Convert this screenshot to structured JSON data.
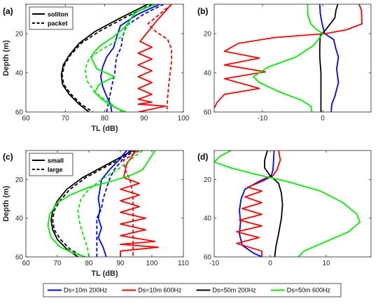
{
  "chart_data": [
    {
      "type": "line",
      "panel_label": "(a)",
      "xlabel": "TL (dB)",
      "ylabel": "Depth (m)",
      "xlim": [
        60,
        100
      ],
      "ylim": [
        60,
        5
      ],
      "xticks": [
        60,
        70,
        80,
        90,
        100
      ],
      "yticks": [
        20,
        40,
        60
      ],
      "legend": {
        "position": "top-left",
        "entries": [
          {
            "label": "soliton",
            "style": "solid"
          },
          {
            "label": "packet",
            "style": "dashed"
          }
        ]
      },
      "series": [
        {
          "color": "#000000",
          "style": "solid",
          "x": [
            91,
            84,
            77.5,
            73.5,
            71,
            69.5,
            69,
            69.3,
            71,
            73.5,
            76
          ],
          "y": [
            5,
            12,
            19,
            25,
            31,
            36,
            41,
            46,
            51,
            56,
            60
          ]
        },
        {
          "color": "#000000",
          "style": "dashed",
          "x": [
            92,
            85,
            78.5,
            74,
            71.3,
            69.8,
            69.2,
            69.6,
            71.5,
            74,
            77
          ],
          "y": [
            5,
            12,
            19,
            25,
            31,
            36,
            41,
            46,
            51,
            56,
            60
          ]
        },
        {
          "color": "#0000ff",
          "style": "solid",
          "x": [
            94,
            88.5,
            84,
            83,
            82.3,
            80.5,
            79.5,
            79,
            79.5,
            80.5,
            81.5,
            81.8
          ],
          "y": [
            5,
            10,
            16,
            22,
            27,
            32,
            37,
            42,
            47,
            52,
            56,
            60
          ]
        },
        {
          "color": "#0000ff",
          "style": "dashed",
          "x": [
            95,
            90,
            85.5,
            84.5,
            84.2,
            83,
            82.7,
            82.5,
            82,
            81.5,
            81,
            80.5
          ],
          "y": [
            5,
            10,
            16,
            22,
            27,
            32,
            37,
            41,
            45,
            50,
            55,
            60
          ]
        },
        {
          "color": "#ff0000",
          "style": "solid",
          "x": [
            97,
            93,
            89,
            92,
            88.5,
            92,
            88.5,
            92,
            88.5,
            92,
            88.5,
            92,
            88.5,
            92,
            88.5,
            95.5,
            88.5
          ],
          "y": [
            5,
            14,
            24,
            27,
            30,
            33,
            36,
            39,
            42,
            45,
            48,
            51,
            53.5,
            55,
            56,
            57,
            60
          ]
        },
        {
          "color": "#ff0000",
          "style": "dashed",
          "x": [
            97,
            94,
            91,
            93,
            96,
            97,
            97,
            96.5,
            96,
            95.8
          ],
          "y": [
            5,
            10,
            15,
            19,
            23,
            28,
            34,
            42,
            52,
            60
          ]
        },
        {
          "color": "#00ee00",
          "style": "solid",
          "x": [
            93,
            87.5,
            86.5,
            85,
            82,
            79,
            77.5,
            76.5,
            78,
            82.5,
            78.5,
            77.5,
            79,
            81,
            83.5,
            85.5
          ],
          "y": [
            5,
            9,
            13,
            17,
            22,
            26,
            29,
            32,
            38,
            42,
            46,
            50,
            53,
            56,
            58.5,
            60
          ]
        },
        {
          "color": "#00ee00",
          "style": "dashed",
          "x": [
            93,
            88,
            86.5,
            85.5,
            84.5,
            82,
            78.5,
            76,
            75,
            75.5,
            77.5,
            81,
            84.5
          ],
          "y": [
            5,
            9,
            13,
            17,
            21,
            25,
            29,
            33,
            38,
            44,
            50,
            55,
            60
          ]
        }
      ]
    },
    {
      "type": "line",
      "panel_label": "(b)",
      "xlabel": "",
      "ylabel": "",
      "xlim": [
        -18,
        8
      ],
      "ylim": [
        60,
        5
      ],
      "xticks": [
        -10,
        0
      ],
      "yticks": [
        20,
        40,
        60
      ],
      "series": [
        {
          "color": "#0000ff",
          "style": "solid",
          "x": [
            -0.5,
            -0.4,
            -0.1,
            0.3,
            1.8,
            2.2,
            2.6,
            2.3,
            2.6,
            2.0,
            1.5,
            1.4
          ],
          "y": [
            5,
            10,
            15,
            20,
            23,
            28,
            32,
            38,
            45,
            52,
            56,
            60
          ]
        },
        {
          "color": "#ff0000",
          "style": "solid",
          "x": [
            6,
            6.4,
            6.5,
            4,
            0.5,
            -8,
            -14,
            -16.3,
            -10.5,
            -16.3,
            -9.5,
            -16.3,
            -10.5,
            -16.3,
            -17.5,
            -18
          ],
          "y": [
            5,
            8,
            15,
            18,
            20,
            22,
            25,
            29,
            32.5,
            36,
            39.5,
            43,
            48,
            51,
            55,
            58
          ]
        },
        {
          "color": "#000000",
          "style": "solid",
          "x": [
            2.5,
            2.2,
            2,
            0.5,
            -0.4,
            -0.5,
            -0.5,
            -0.3,
            -0.3,
            -0.3
          ],
          "y": [
            5,
            8,
            12,
            18,
            21,
            26,
            32,
            40,
            50,
            60
          ]
        },
        {
          "color": "#00ee00",
          "style": "solid",
          "x": [
            -2.5,
            -2.5,
            -2,
            -1,
            0,
            -1.5,
            -4.5,
            -9,
            -11.5,
            -10.5,
            -7,
            -3.5,
            -2,
            -1.8
          ],
          "y": [
            5,
            10,
            15,
            18,
            20,
            26,
            32,
            37,
            42,
            45,
            50,
            54,
            57,
            60
          ]
        }
      ]
    },
    {
      "type": "line",
      "panel_label": "(c)",
      "xlabel": "TL (dB)",
      "ylabel": "Depth (m)",
      "xlim": [
        60,
        110
      ],
      "ylim": [
        60,
        5
      ],
      "xticks": [
        60,
        70,
        80,
        90,
        100,
        110
      ],
      "yticks": [
        20,
        40,
        60
      ],
      "legend": {
        "position": "top-left",
        "entries": [
          {
            "label": "small",
            "style": "solid"
          },
          {
            "label": "large",
            "style": "dashed"
          }
        ]
      },
      "series": [
        {
          "color": "#000000",
          "style": "solid",
          "x": [
            94,
            86,
            78,
            73,
            70,
            68.5,
            68,
            68.5,
            70,
            73,
            76.5
          ],
          "y": [
            5,
            12,
            19,
            25,
            31,
            36,
            41,
            46,
            51,
            56,
            60
          ]
        },
        {
          "color": "#000000",
          "style": "dashed",
          "x": [
            95,
            87,
            79,
            74,
            70.8,
            69,
            68.5,
            69,
            71,
            74,
            78
          ],
          "y": [
            5,
            12,
            19,
            25,
            31,
            36,
            41,
            46,
            51,
            56,
            60
          ]
        },
        {
          "color": "#0000ff",
          "style": "solid",
          "x": [
            92,
            89.5,
            86.5,
            84,
            83.5,
            83,
            83.5,
            83,
            84,
            83,
            84.5,
            85.5
          ],
          "y": [
            5,
            10,
            15,
            20,
            25,
            30,
            35,
            40,
            45,
            50,
            55,
            60
          ]
        },
        {
          "color": "#0000ff",
          "style": "dashed",
          "x": [
            93,
            90.5,
            88,
            86.5,
            85.5,
            84.5,
            84,
            82.5,
            82.5,
            82.5,
            82.5
          ],
          "y": [
            5,
            10,
            15,
            20,
            25,
            30,
            35,
            40,
            45,
            50,
            60
          ]
        },
        {
          "color": "#ff0000",
          "style": "solid",
          "x": [
            95,
            92,
            91,
            96,
            90,
            96,
            90,
            96,
            90,
            98,
            90,
            98,
            90,
            101,
            90,
            102,
            90,
            90
          ],
          "y": [
            5,
            12,
            19,
            22,
            25,
            28,
            31,
            34,
            37,
            40,
            43,
            46,
            49,
            52,
            53.5,
            55,
            57,
            60
          ]
        },
        {
          "color": "#ff0000",
          "style": "dashed",
          "x": [
            96,
            91,
            91.5,
            93,
            94,
            94,
            94,
            94
          ],
          "y": [
            5,
            10,
            15,
            20,
            28,
            38,
            50,
            60
          ]
        },
        {
          "color": "#00ee00",
          "style": "solid",
          "x": [
            101,
            99,
            97,
            93,
            87,
            80,
            74,
            70,
            67.5,
            67,
            68,
            71,
            75,
            79
          ],
          "y": [
            5,
            10,
            15,
            18,
            21,
            24,
            28,
            32,
            38,
            44,
            50,
            55,
            58,
            60
          ]
        },
        {
          "color": "#00ee00",
          "style": "dashed",
          "x": [
            97,
            93,
            89,
            84,
            80,
            77.5,
            76.5,
            77,
            78,
            79.5,
            80
          ],
          "y": [
            5,
            10,
            15,
            20,
            25,
            30,
            36,
            42,
            48,
            55,
            60
          ]
        }
      ]
    },
    {
      "type": "line",
      "panel_label": "(d)",
      "xlabel": "",
      "ylabel": "",
      "xlim": [
        -10,
        18
      ],
      "ylim": [
        60,
        5
      ],
      "xticks": [
        -10,
        0,
        10
      ],
      "yticks": [
        20,
        40,
        60
      ],
      "series": [
        {
          "color": "#0000ff",
          "style": "solid",
          "x": [
            0.7,
            0.6,
            0.5,
            0.2,
            -2,
            -4.5,
            -5.2,
            -5.5,
            -5.3,
            -5.5,
            -5,
            -3,
            -1.5
          ],
          "y": [
            5,
            10,
            15,
            18,
            21,
            25,
            30,
            36,
            42,
            48,
            54,
            58,
            60
          ]
        },
        {
          "color": "#ff0000",
          "style": "solid",
          "x": [
            1.5,
            1.8,
            1.2,
            0.5,
            -1.5,
            -4,
            -1.5,
            -4.5,
            -1.5,
            -5,
            -1.5,
            -5.5,
            -1.5,
            -6,
            -2,
            -6,
            -1.5,
            -1.5
          ],
          "y": [
            5,
            10,
            15,
            18,
            21,
            24,
            26,
            29,
            32,
            35,
            38,
            41,
            44,
            47,
            50,
            53,
            57,
            60
          ]
        },
        {
          "color": "#000000",
          "style": "solid",
          "x": [
            -0.5,
            -1,
            -1,
            0,
            1.5,
            2,
            2.2,
            2,
            1.5,
            1,
            0.8
          ],
          "y": [
            5,
            10,
            14,
            18,
            22,
            27,
            33,
            40,
            48,
            55,
            60
          ]
        },
        {
          "color": "#00ee00",
          "style": "solid",
          "x": [
            -7,
            -9,
            -10,
            -7,
            -3,
            3,
            9,
            13,
            15.5,
            16,
            14,
            10,
            6,
            5
          ],
          "y": [
            5,
            8,
            11,
            14,
            17,
            21,
            26,
            32,
            38,
            42,
            47,
            52,
            57,
            60
          ]
        }
      ]
    }
  ],
  "bottom_legend": {
    "entries": [
      {
        "label": "Ds=10m 200Hz",
        "color": "#0000ff"
      },
      {
        "label": "Ds=10m 600Hz",
        "color": "#ff0000"
      },
      {
        "label": "Ds=50m 200Hz",
        "color": "#000000"
      },
      {
        "label": "Ds=50m 600Hz",
        "color": "#00ee00"
      }
    ]
  }
}
